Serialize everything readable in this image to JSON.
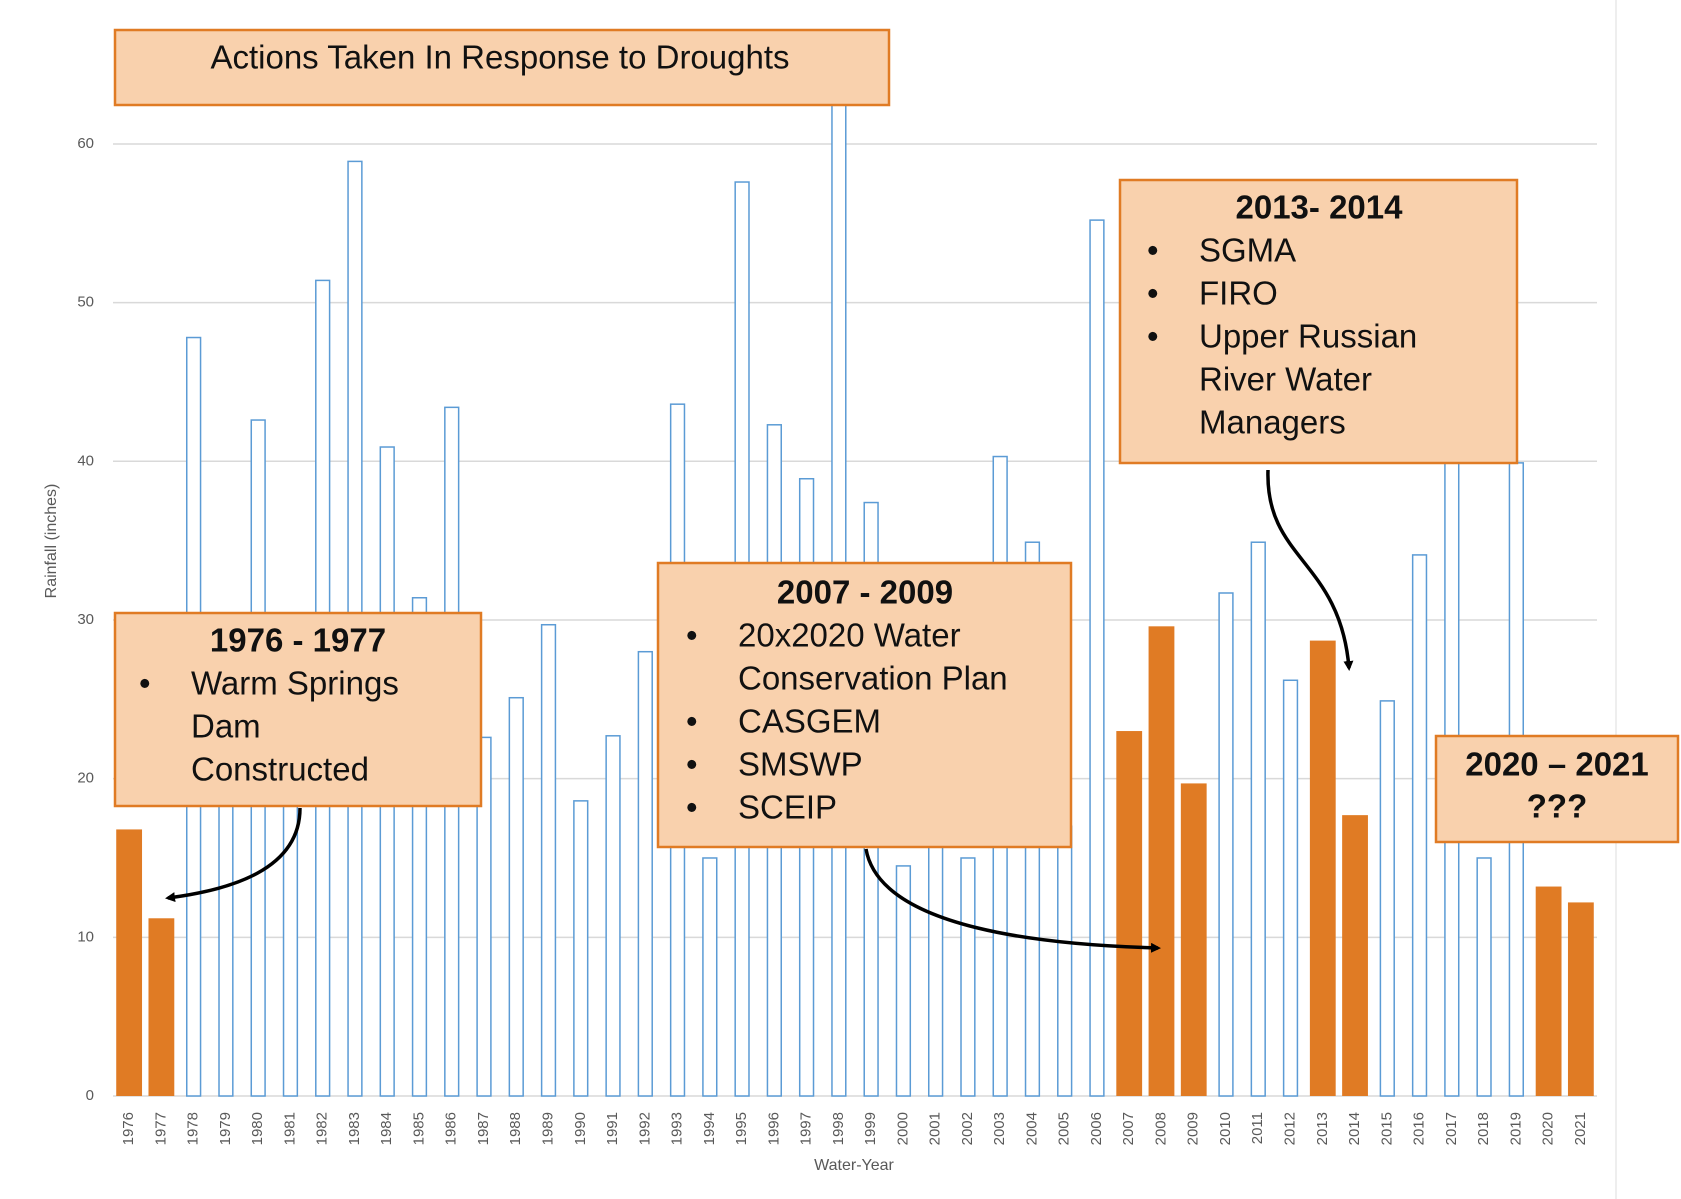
{
  "chart_data": {
    "type": "bar",
    "x_label": "Water-Year",
    "y_label": "Rainfall (inches)",
    "categories": [
      "1976",
      "1977",
      "1978",
      "1979",
      "1980",
      "1981",
      "1982",
      "1983",
      "1984",
      "1985",
      "1986",
      "1987",
      "1988",
      "1989",
      "1990",
      "1991",
      "1992",
      "1993",
      "1994",
      "1995",
      "1996",
      "1997",
      "1998",
      "1999",
      "2000",
      "2001",
      "2002",
      "2003",
      "2004",
      "2005",
      "2006",
      "2007",
      "2008",
      "2009",
      "2010",
      "2011",
      "2012",
      "2013",
      "2014",
      "2015",
      "2016",
      "2017",
      "2018",
      "2019",
      "2020",
      "2021"
    ],
    "values": [
      16.8,
      11.2,
      47.8,
      24,
      42.6,
      22,
      51.4,
      58.9,
      40.9,
      31.4,
      43.4,
      22.6,
      25.1,
      29.7,
      18.6,
      22.7,
      28.0,
      43.6,
      15,
      57.6,
      42.3,
      38.9,
      64,
      37.4,
      14.5,
      16,
      15,
      40.3,
      34.9,
      17,
      55.2,
      23.0,
      29.6,
      19.7,
      31.7,
      34.9,
      26.2,
      28.7,
      17.7,
      24.9,
      34.1,
      44,
      15,
      39.9,
      13.2,
      12.2
    ],
    "styles": [
      "filled",
      "filled",
      "outline",
      "outline",
      "outline",
      "outline",
      "outline",
      "outline",
      "outline",
      "outline",
      "outline",
      "outline",
      "outline",
      "outline",
      "outline",
      "outline",
      "outline",
      "outline",
      "outline",
      "outline",
      "outline",
      "outline",
      "outline",
      "outline",
      "outline",
      "outline",
      "outline",
      "outline",
      "outline",
      "outline",
      "outline",
      "filled",
      "filled",
      "filled",
      "outline",
      "outline",
      "outline",
      "filled",
      "filled",
      "outline",
      "outline",
      "outline",
      "outline",
      "outline",
      "filled",
      "filled"
    ],
    "filled_color": "#e07b24",
    "outline_color": "#5b9bd5",
    "ylim": [
      0,
      68
    ],
    "yticks": [
      0,
      10,
      20,
      30,
      40,
      50,
      60
    ],
    "grid": true,
    "annotations": [
      {
        "title": "Actions Taken In Response to Droughts"
      },
      {
        "title": "1976 - 1977",
        "items": [
          [
            "Warm Springs",
            "Dam",
            "Constructed"
          ]
        ]
      },
      {
        "title": "2007 - 2009",
        "items": [
          [
            "20x2020 Water",
            "Conservation Plan"
          ],
          [
            "CASGEM"
          ],
          [
            "SMSWP"
          ],
          [
            "SCEIP"
          ]
        ]
      },
      {
        "title": "2013- 2014",
        "items": [
          [
            "SGMA"
          ],
          [
            "FIRO"
          ],
          [
            "Upper Russian",
            "River Water",
            "Managers"
          ]
        ]
      },
      {
        "title": "2020 – 2021",
        "subtitle": "???"
      }
    ]
  }
}
